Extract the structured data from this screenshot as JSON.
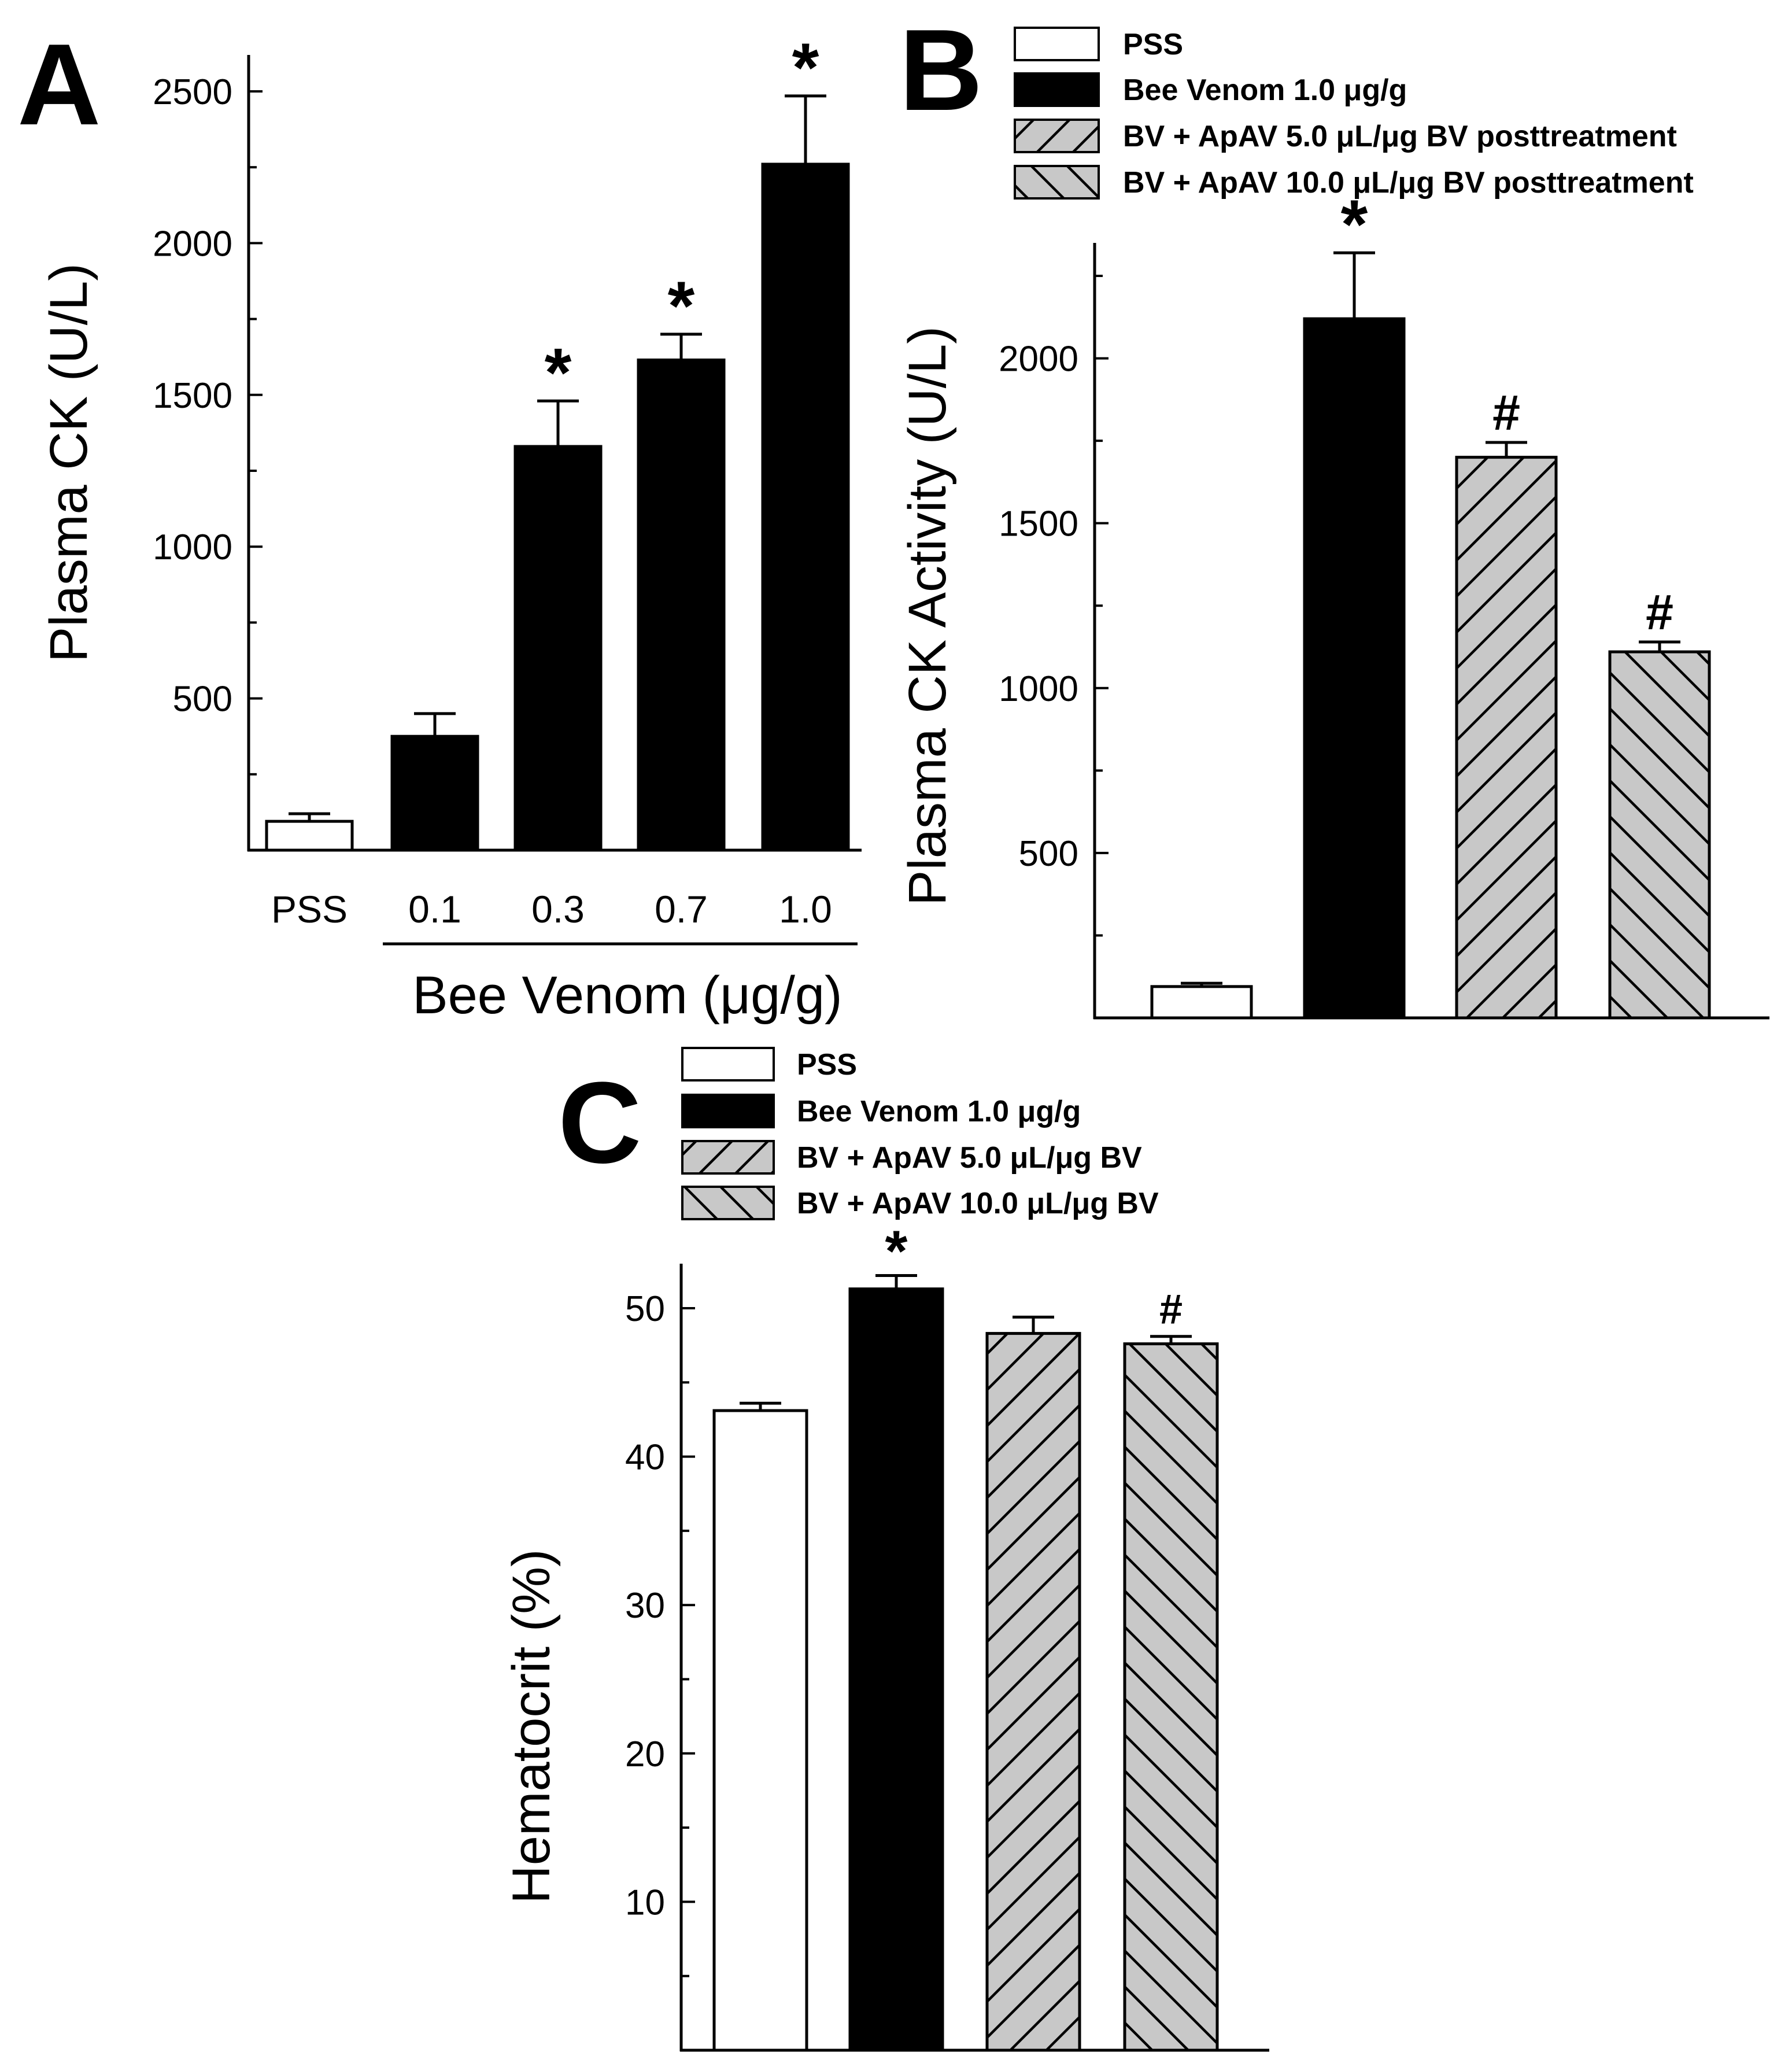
{
  "chart_data": [
    {
      "panel": "A",
      "type": "bar",
      "title": "",
      "xlabel": "Bee Venom (μg/g)",
      "ylabel": "Plasma CK (U/L)",
      "ylim": [
        0,
        2620
      ],
      "yticks": [
        500,
        1000,
        1500,
        2000,
        2500
      ],
      "categories": [
        "PSS",
        "0.1",
        "0.3",
        "0.7",
        "1.0"
      ],
      "values": [
        95,
        375,
        1330,
        1615,
        2260
      ],
      "errors": [
        25,
        75,
        150,
        85,
        225
      ],
      "fills": [
        "white",
        "black",
        "black",
        "black",
        "black"
      ],
      "annotations": [
        "",
        "",
        "*",
        "*",
        "*"
      ],
      "group_bracket": {
        "from": "0.1",
        "to": "1.0"
      }
    },
    {
      "panel": "B",
      "type": "bar",
      "title": "",
      "xlabel": "",
      "ylabel": "Plasma CK Activity (U/L)",
      "ylim": [
        0,
        2350
      ],
      "yticks": [
        500,
        1000,
        1500,
        2000
      ],
      "categories": [
        "PSS",
        "Bee Venom 1.0 μg/g",
        "BV + ApAV 5.0 μL/μg BV posttreatment",
        "BV + ApAV 10.0 μL/μg BV posttreatment"
      ],
      "values": [
        95,
        2120,
        1700,
        1110
      ],
      "errors": [
        10,
        200,
        45,
        30
      ],
      "fills": [
        "white",
        "black",
        "hatch-forward",
        "hatch-back"
      ],
      "annotations": [
        "",
        "*",
        "#",
        "#"
      ],
      "legend": {
        "placement": "top",
        "entries": [
          "PSS",
          "Bee Venom 1.0 μg/g",
          "BV + ApAV 5.0 μL/μg BV posttreatment",
          "BV + ApAV 10.0 μL/μg BV posttreatment"
        ]
      }
    },
    {
      "panel": "C",
      "type": "bar",
      "title": "",
      "xlabel": "",
      "ylabel": "Hematocrit (%)",
      "ylim": [
        0,
        53
      ],
      "yticks": [
        10,
        20,
        30,
        40,
        50
      ],
      "categories": [
        "PSS",
        "Bee Venom 1.0 μg/g",
        "BV + ApAV 5.0 μL/μg BV",
        "BV + ApAV 10.0 μL/μg BV"
      ],
      "values": [
        43.1,
        51.3,
        48.3,
        47.6
      ],
      "errors": [
        0.5,
        0.9,
        1.1,
        0.5
      ],
      "fills": [
        "white",
        "black",
        "hatch-forward",
        "hatch-back"
      ],
      "annotations": [
        "",
        "*",
        "",
        "#"
      ],
      "legend": {
        "placement": "top",
        "entries": [
          "PSS",
          "Bee Venom 1.0 μg/g",
          "BV + ApAV 5.0 μL/μg BV",
          "BV + ApAV 10.0 μL/μg BV"
        ]
      }
    }
  ]
}
